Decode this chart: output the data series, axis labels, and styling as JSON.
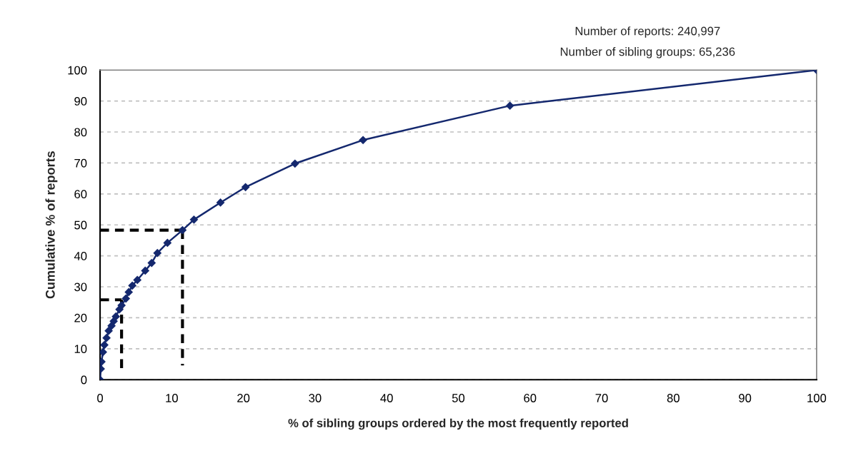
{
  "chart_data": {
    "type": "line",
    "xlabel": "% of sibling groups ordered by the most frequently reported",
    "ylabel": "Cumulative % of reports",
    "annotations": [
      "Number of reports: 240,997",
      "Number of sibling groups: 65,236"
    ],
    "xlim": [
      0,
      100
    ],
    "xticks": [
      0,
      10,
      20,
      30,
      40,
      50,
      60,
      70,
      80,
      90,
      100
    ],
    "ylim": [
      0,
      100
    ],
    "yticks": [
      0,
      10,
      20,
      30,
      40,
      50,
      60,
      70,
      80,
      90,
      100
    ],
    "grid": "y",
    "legend": false,
    "series": [
      {
        "color": "#14286e",
        "marker": "diamond",
        "line_style": "solid",
        "x": [
          0,
          0.1,
          0.2,
          0.4,
          0.6,
          0.9,
          1.2,
          1.6,
          1.9,
          2.2,
          2.7,
          3.0,
          3.6,
          4.0,
          4.5,
          5.2,
          6.3,
          7.2,
          8.0,
          9.4,
          11.5,
          13.1,
          16.8,
          20.3,
          27.2,
          36.7,
          57.2,
          100
        ],
        "values": [
          0,
          3.5,
          5.8,
          8.9,
          11.2,
          13.5,
          15.8,
          17.4,
          18.9,
          20.4,
          22.7,
          24.0,
          26.2,
          28.3,
          30.4,
          32.2,
          35.2,
          37.7,
          40.9,
          44.2,
          48.3,
          51.7,
          57.2,
          62.2,
          69.8,
          77.4,
          88.5,
          100
        ]
      },
      {
        "color": "#000000",
        "marker": "none",
        "line_style": "dashed",
        "x": [
          0,
          11.5
        ],
        "values": [
          48.3,
          48.3
        ]
      },
      {
        "color": "#000000",
        "marker": "none",
        "line_style": "dashed",
        "x": [
          11.5,
          11.5
        ],
        "values": [
          48.3,
          4.6
        ]
      },
      {
        "color": "#000000",
        "marker": "none",
        "line_style": "dashed",
        "x": [
          0,
          3.0
        ],
        "values": [
          25.8,
          25.8
        ]
      },
      {
        "color": "#000000",
        "marker": "none",
        "line_style": "dashed",
        "x": [
          3.0,
          3.0
        ],
        "values": [
          25.8,
          3.2
        ]
      }
    ]
  }
}
